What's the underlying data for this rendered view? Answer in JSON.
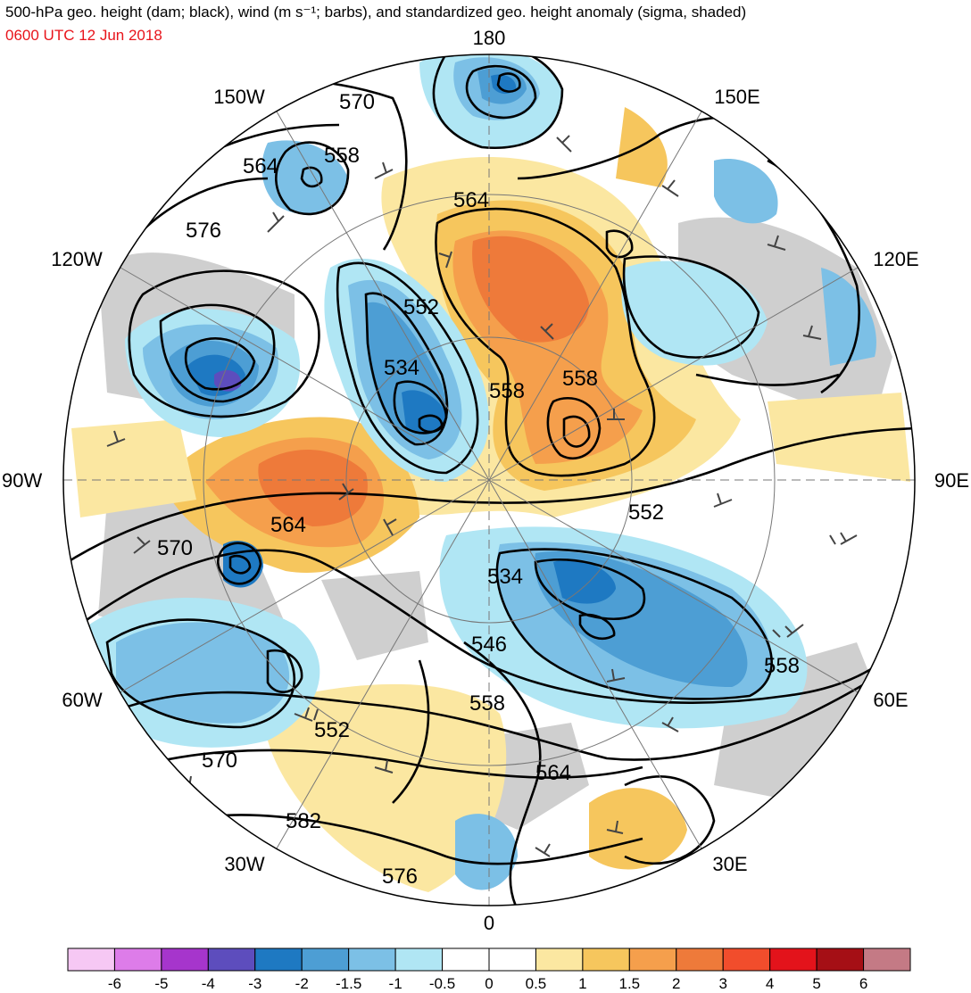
{
  "header": {
    "title": "500-hPa geo. height (dam; black), wind (m s⁻¹; barbs), and standardized geo. height anomaly (sigma, shaded)",
    "valid_time": "0600 UTC 12 Jun 2018",
    "valid_time_color": "#e8141b"
  },
  "map": {
    "projection": "north-polar-stereographic",
    "longitude_labels": {
      "top": "180",
      "bottom": "0",
      "left": "90W",
      "right": "90E",
      "upper_left_150": "150W",
      "upper_left_120": "120W",
      "upper_right_150": "150E",
      "upper_right_120": "120E",
      "lower_left_60": "60W",
      "lower_left_30": "30W",
      "lower_right_60": "60E",
      "lower_right_30": "30E"
    },
    "contour_labels": [
      "570",
      "564",
      "558",
      "576",
      "552",
      "534",
      "564",
      "558",
      "558",
      "552",
      "564",
      "570",
      "534",
      "546",
      "558",
      "552",
      "570",
      "558",
      "564",
      "582",
      "576"
    ]
  },
  "colorbar": {
    "labels": [
      "-6",
      "-5",
      "-4",
      "-3",
      "-2",
      "-1.5",
      "-1",
      "-0.5",
      "0",
      "0.5",
      "1",
      "1.5",
      "2",
      "3",
      "4",
      "5",
      "6"
    ],
    "colors": [
      "#f6c8f4",
      "#dd7ce9",
      "#a635cc",
      "#5d4dbd",
      "#1e79c2",
      "#4d9ed4",
      "#7cc0e6",
      "#b0e6f4",
      "#ffffff",
      "#ffffff",
      "#fbe7a1",
      "#f6c65d",
      "#f59f4c",
      "#ee7a3a",
      "#f14d2c",
      "#e3131b",
      "#a50f15",
      "#c47a85"
    ]
  }
}
